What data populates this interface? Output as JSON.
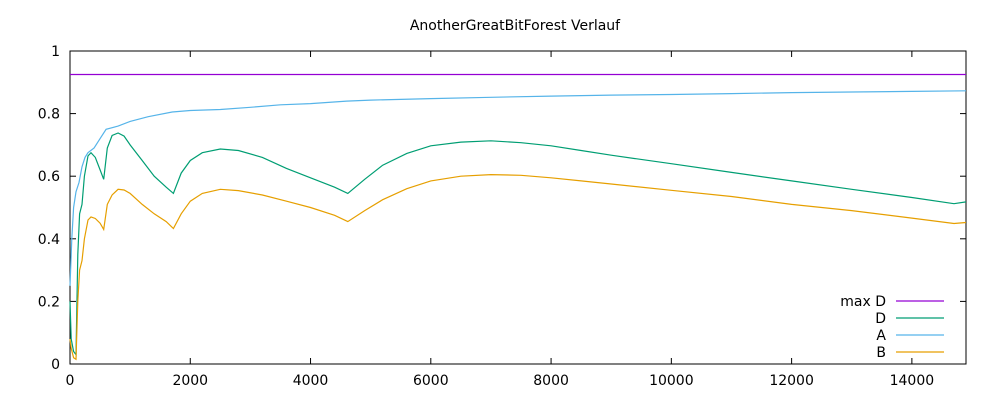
{
  "chart_data": {
    "type": "line",
    "title": "AnotherGreatBitForest Verlauf",
    "xlabel": "",
    "ylabel": "",
    "xlim": [
      0,
      14900
    ],
    "ylim": [
      0,
      1
    ],
    "grid": false,
    "legend_position": "bottom-right",
    "x_ticks": [
      0,
      2000,
      4000,
      6000,
      8000,
      10000,
      12000,
      14000
    ],
    "x_tick_labels": [
      "0",
      "2000",
      "4000",
      "6000",
      "8000",
      "10000",
      "12000",
      "14000"
    ],
    "y_ticks": [
      0,
      0.2,
      0.4,
      0.6,
      0.8,
      1
    ],
    "y_tick_labels": [
      "0",
      "0.2",
      "0.4",
      "0.6",
      "0.8",
      "1"
    ],
    "series": [
      {
        "name": "max D",
        "color": "#9400d3",
        "points": [
          [
            0,
            0.925
          ],
          [
            14900,
            0.925
          ]
        ]
      },
      {
        "name": "D",
        "color": "#009e73",
        "points": [
          [
            0,
            0.2
          ],
          [
            20,
            0.08
          ],
          [
            60,
            0.04
          ],
          [
            100,
            0.03
          ],
          [
            130,
            0.35
          ],
          [
            160,
            0.48
          ],
          [
            200,
            0.51
          ],
          [
            240,
            0.6
          ],
          [
            300,
            0.665
          ],
          [
            350,
            0.675
          ],
          [
            420,
            0.66
          ],
          [
            500,
            0.62
          ],
          [
            560,
            0.59
          ],
          [
            620,
            0.69
          ],
          [
            700,
            0.73
          ],
          [
            800,
            0.738
          ],
          [
            900,
            0.728
          ],
          [
            1000,
            0.7
          ],
          [
            1200,
            0.65
          ],
          [
            1400,
            0.6
          ],
          [
            1600,
            0.565
          ],
          [
            1720,
            0.545
          ],
          [
            1850,
            0.61
          ],
          [
            2000,
            0.65
          ],
          [
            2200,
            0.675
          ],
          [
            2500,
            0.687
          ],
          [
            2800,
            0.682
          ],
          [
            3200,
            0.66
          ],
          [
            3600,
            0.625
          ],
          [
            4000,
            0.595
          ],
          [
            4400,
            0.565
          ],
          [
            4620,
            0.545
          ],
          [
            4900,
            0.59
          ],
          [
            5200,
            0.635
          ],
          [
            5600,
            0.673
          ],
          [
            6000,
            0.697
          ],
          [
            6500,
            0.709
          ],
          [
            7000,
            0.713
          ],
          [
            7500,
            0.707
          ],
          [
            8000,
            0.697
          ],
          [
            8500,
            0.682
          ],
          [
            9000,
            0.667
          ],
          [
            10000,
            0.64
          ],
          [
            11000,
            0.612
          ],
          [
            12000,
            0.585
          ],
          [
            13000,
            0.558
          ],
          [
            14000,
            0.532
          ],
          [
            14700,
            0.512
          ],
          [
            14900,
            0.518
          ]
        ]
      },
      {
        "name": "A",
        "color": "#56b4e9",
        "points": [
          [
            0,
            0.25
          ],
          [
            30,
            0.4
          ],
          [
            60,
            0.5
          ],
          [
            100,
            0.55
          ],
          [
            150,
            0.58
          ],
          [
            200,
            0.63
          ],
          [
            250,
            0.66
          ],
          [
            300,
            0.675
          ],
          [
            400,
            0.69
          ],
          [
            500,
            0.72
          ],
          [
            600,
            0.75
          ],
          [
            800,
            0.76
          ],
          [
            1000,
            0.775
          ],
          [
            1300,
            0.79
          ],
          [
            1700,
            0.805
          ],
          [
            2000,
            0.81
          ],
          [
            2500,
            0.813
          ],
          [
            3000,
            0.82
          ],
          [
            3500,
            0.828
          ],
          [
            4000,
            0.832
          ],
          [
            4600,
            0.84
          ],
          [
            5000,
            0.843
          ],
          [
            6000,
            0.848
          ],
          [
            7000,
            0.852
          ],
          [
            8000,
            0.856
          ],
          [
            9000,
            0.859
          ],
          [
            10000,
            0.861
          ],
          [
            11000,
            0.864
          ],
          [
            12000,
            0.867
          ],
          [
            13000,
            0.869
          ],
          [
            14000,
            0.871
          ],
          [
            14900,
            0.873
          ]
        ]
      },
      {
        "name": "B",
        "color": "#e69f00",
        "points": [
          [
            0,
            0.08
          ],
          [
            20,
            0.05
          ],
          [
            60,
            0.02
          ],
          [
            100,
            0.015
          ],
          [
            130,
            0.2
          ],
          [
            160,
            0.3
          ],
          [
            200,
            0.33
          ],
          [
            240,
            0.4
          ],
          [
            300,
            0.46
          ],
          [
            350,
            0.47
          ],
          [
            420,
            0.465
          ],
          [
            500,
            0.45
          ],
          [
            560,
            0.43
          ],
          [
            620,
            0.51
          ],
          [
            700,
            0.54
          ],
          [
            800,
            0.558
          ],
          [
            900,
            0.556
          ],
          [
            1000,
            0.545
          ],
          [
            1200,
            0.51
          ],
          [
            1400,
            0.48
          ],
          [
            1600,
            0.455
          ],
          [
            1720,
            0.433
          ],
          [
            1850,
            0.48
          ],
          [
            2000,
            0.52
          ],
          [
            2200,
            0.545
          ],
          [
            2500,
            0.558
          ],
          [
            2800,
            0.554
          ],
          [
            3200,
            0.54
          ],
          [
            3600,
            0.52
          ],
          [
            4000,
            0.5
          ],
          [
            4400,
            0.475
          ],
          [
            4620,
            0.455
          ],
          [
            4900,
            0.49
          ],
          [
            5200,
            0.525
          ],
          [
            5600,
            0.56
          ],
          [
            6000,
            0.585
          ],
          [
            6500,
            0.6
          ],
          [
            7000,
            0.605
          ],
          [
            7500,
            0.603
          ],
          [
            8000,
            0.595
          ],
          [
            8500,
            0.585
          ],
          [
            9000,
            0.575
          ],
          [
            10000,
            0.555
          ],
          [
            11000,
            0.535
          ],
          [
            12000,
            0.51
          ],
          [
            13000,
            0.49
          ],
          [
            14000,
            0.466
          ],
          [
            14700,
            0.449
          ],
          [
            14900,
            0.452
          ]
        ]
      }
    ]
  }
}
